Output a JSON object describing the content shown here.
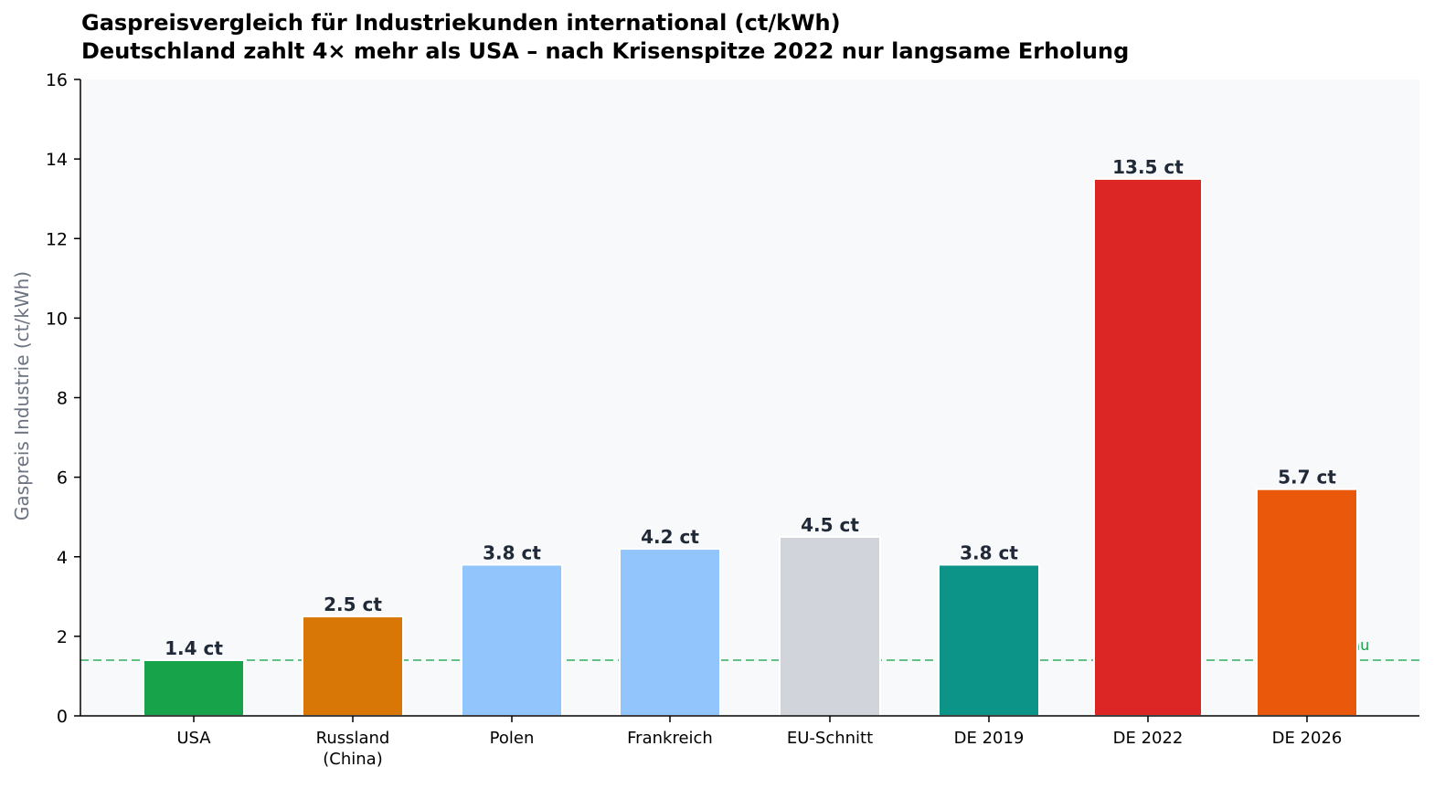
{
  "chart_data": {
    "type": "bar",
    "title": "Gaspreisvergleich für Industriekunden international (ct/kWh)",
    "subtitle": "Deutschland zahlt 4× mehr als USA – nach Krisenspitze 2022 nur langsame Erholung",
    "xlabel": "",
    "ylabel": "Gaspreis Industrie (ct/kWh)",
    "ylim": [
      0,
      16
    ],
    "yticks": [
      0,
      2,
      4,
      6,
      8,
      10,
      12,
      14,
      16
    ],
    "grid": false,
    "background": "#f8f9fb",
    "categories": [
      "USA",
      "Russland\n(China)",
      "Polen",
      "Frankreich",
      "EU-Schnitt",
      "DE 2019",
      "DE 2022",
      "DE 2026"
    ],
    "values": [
      1.4,
      2.5,
      3.8,
      4.2,
      4.5,
      3.8,
      13.5,
      5.7
    ],
    "value_labels": [
      "1.4 ct",
      "2.5 ct",
      "3.8 ct",
      "4.2 ct",
      "4.5 ct",
      "3.8 ct",
      "13.5 ct",
      "5.7 ct"
    ],
    "colors": [
      "#16a34a",
      "#d97706",
      "#93c5fd",
      "#93c5fd",
      "#d1d5db",
      "#0d9488",
      "#dc2626",
      "#ea580c"
    ],
    "reference_line": {
      "value": 1.4,
      "label": "USA-Niveau",
      "color": "#16a34a",
      "style": "dashed"
    }
  }
}
